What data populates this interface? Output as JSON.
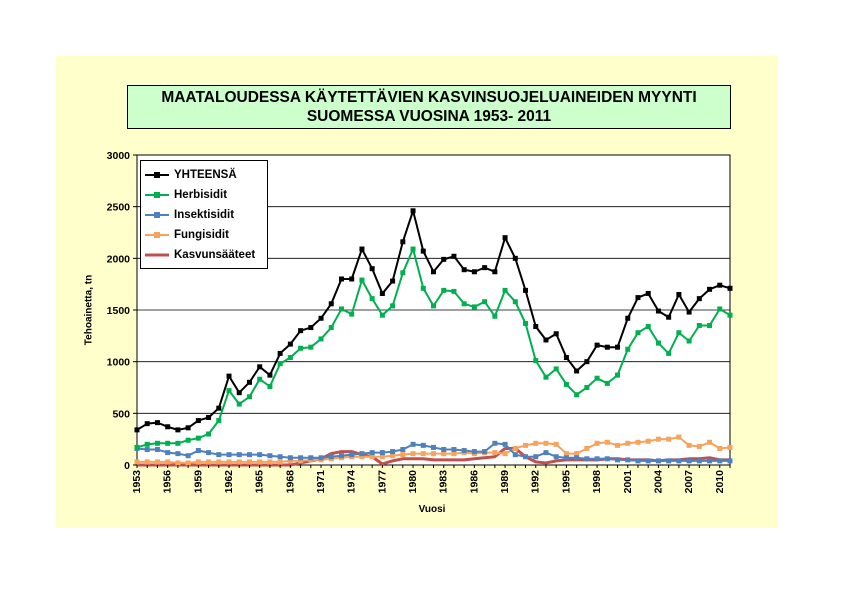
{
  "chart_data": {
    "type": "line",
    "title_lines": [
      "MAATALOUDESSA KÄYTETTÄVIEN KASVINSUOJELUAINEIDEN MYYNTI",
      "SUOMESSA VUOSINA 1953- 2011"
    ],
    "xlabel": "Vuosi",
    "ylabel": "Tehoainetta, tn",
    "ylim": [
      0,
      3000
    ],
    "yticks": [
      0,
      500,
      1000,
      1500,
      2000,
      2500,
      3000
    ],
    "x": [
      1953,
      1954,
      1955,
      1956,
      1957,
      1958,
      1959,
      1960,
      1961,
      1962,
      1963,
      1964,
      1965,
      1966,
      1967,
      1968,
      1969,
      1970,
      1971,
      1972,
      1973,
      1974,
      1975,
      1976,
      1977,
      1978,
      1979,
      1980,
      1981,
      1982,
      1983,
      1984,
      1985,
      1986,
      1987,
      1988,
      1989,
      1990,
      1991,
      1992,
      1993,
      1994,
      1995,
      1996,
      1997,
      1998,
      1999,
      2000,
      2001,
      2002,
      2003,
      2004,
      2005,
      2006,
      2007,
      2008,
      2009,
      2010,
      2011
    ],
    "xticks": [
      1953,
      1956,
      1959,
      1962,
      1965,
      1968,
      1971,
      1974,
      1977,
      1980,
      1983,
      1986,
      1989,
      1992,
      1995,
      1998,
      2001,
      2004,
      2007,
      2010
    ],
    "grid": "horizontal",
    "legend_position": "top-left",
    "series": [
      {
        "name": "YHTEENSÄ",
        "color": "#000000",
        "marker": "square",
        "values": [
          340,
          400,
          410,
          370,
          340,
          360,
          430,
          460,
          550,
          860,
          700,
          800,
          950,
          870,
          1080,
          1170,
          1300,
          1330,
          1420,
          1560,
          1800,
          1800,
          2090,
          1900,
          1660,
          1780,
          2160,
          2460,
          2070,
          1870,
          1990,
          2020,
          1890,
          1870,
          1910,
          1870,
          2200,
          2000,
          1690,
          1340,
          1210,
          1270,
          1040,
          910,
          1000,
          1160,
          1140,
          1140,
          1420,
          1620,
          1660,
          1490,
          1430,
          1650,
          1480,
          1610,
          1700,
          1740,
          1710
        ]
      },
      {
        "name": "Herbisidit",
        "color": "#00b050",
        "marker": "square",
        "values": [
          170,
          200,
          210,
          210,
          210,
          240,
          260,
          300,
          430,
          720,
          590,
          660,
          830,
          760,
          980,
          1040,
          1130,
          1140,
          1220,
          1330,
          1510,
          1460,
          1790,
          1610,
          1450,
          1540,
          1860,
          2090,
          1710,
          1540,
          1690,
          1680,
          1560,
          1530,
          1580,
          1440,
          1690,
          1580,
          1370,
          1010,
          850,
          930,
          780,
          680,
          750,
          840,
          790,
          870,
          1120,
          1280,
          1340,
          1180,
          1080,
          1280,
          1200,
          1350,
          1350,
          1510,
          1450
        ]
      },
      {
        "name": "Insektisidit",
        "color": "#4f81bd",
        "marker": "square",
        "values": [
          160,
          150,
          150,
          120,
          110,
          90,
          140,
          120,
          100,
          100,
          100,
          100,
          100,
          90,
          80,
          70,
          70,
          70,
          70,
          80,
          90,
          100,
          110,
          120,
          120,
          130,
          150,
          200,
          190,
          170,
          150,
          150,
          140,
          130,
          130,
          210,
          200,
          100,
          80,
          80,
          120,
          80,
          70,
          70,
          60,
          60,
          60,
          50,
          50,
          40,
          40,
          40,
          40,
          40,
          40,
          40,
          40,
          40,
          40
        ]
      },
      {
        "name": "Fungisidit",
        "color": "#f7a35c",
        "marker": "square",
        "values": [
          30,
          30,
          30,
          30,
          20,
          20,
          30,
          30,
          30,
          30,
          30,
          30,
          30,
          30,
          30,
          40,
          40,
          50,
          50,
          60,
          70,
          80,
          80,
          80,
          80,
          90,
          100,
          110,
          110,
          110,
          110,
          110,
          120,
          110,
          120,
          120,
          110,
          160,
          190,
          210,
          210,
          200,
          110,
          110,
          160,
          210,
          220,
          190,
          210,
          220,
          230,
          250,
          250,
          270,
          190,
          180,
          220,
          160,
          170
        ]
      },
      {
        "name": "Kasvunsääteet",
        "color": "#c0504d",
        "marker": "none",
        "values": [
          0,
          0,
          0,
          0,
          0,
          0,
          0,
          0,
          0,
          0,
          0,
          0,
          0,
          0,
          0,
          0,
          20,
          40,
          60,
          110,
          130,
          130,
          100,
          80,
          10,
          40,
          60,
          60,
          60,
          50,
          50,
          50,
          50,
          60,
          70,
          80,
          160,
          160,
          80,
          30,
          20,
          40,
          50,
          50,
          50,
          50,
          60,
          60,
          50,
          50,
          50,
          40,
          50,
          50,
          60,
          60,
          70,
          50,
          50
        ]
      }
    ]
  }
}
